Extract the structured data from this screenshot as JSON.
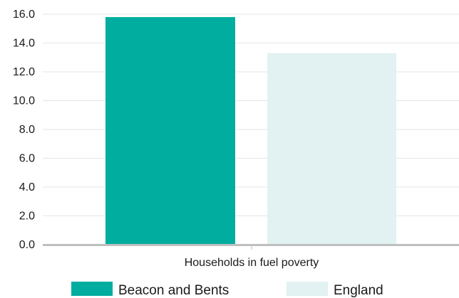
{
  "chart_data": {
    "type": "bar",
    "title": "",
    "xlabel": "",
    "ylabel": "",
    "categories": [
      "Households in fuel poverty"
    ],
    "series": [
      {
        "name": "Beacon and Bents",
        "values": [
          15.8
        ],
        "color": "#00ad9f"
      },
      {
        "name": "England",
        "values": [
          13.3
        ],
        "color": "#e2f1f1"
      }
    ],
    "ylim": [
      0,
      16
    ],
    "yticks": [
      "0.0",
      "2.0",
      "4.0",
      "6.0",
      "8.0",
      "10.0",
      "12.0",
      "14.0",
      "16.0"
    ],
    "grid": true,
    "legend_position": "bottom"
  }
}
